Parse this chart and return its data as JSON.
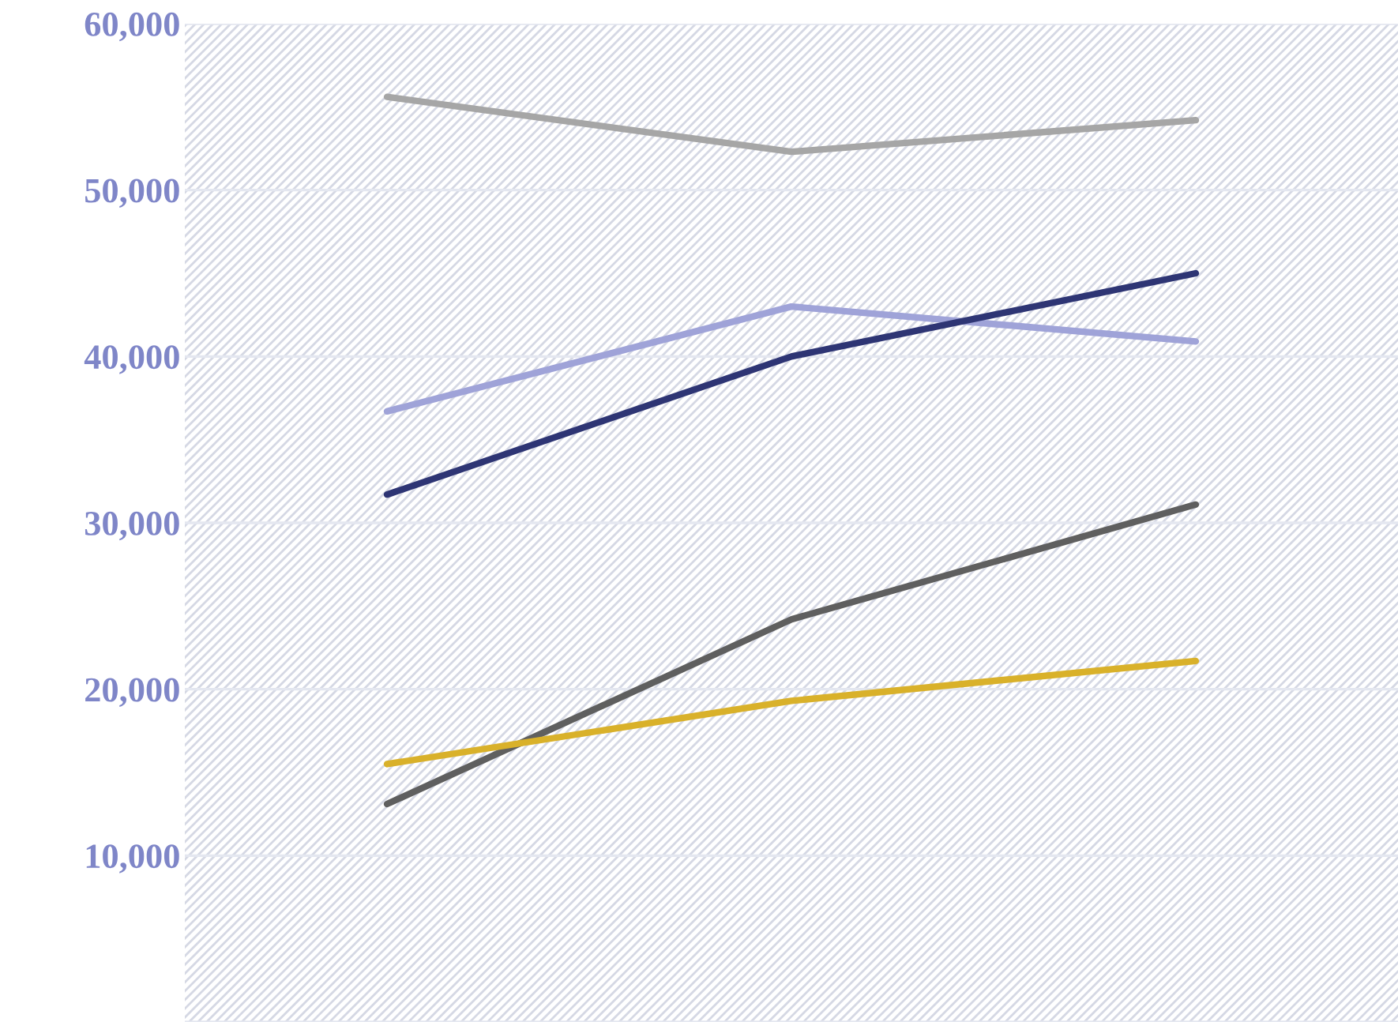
{
  "chart_data": {
    "type": "line",
    "categories": [
      null,
      null,
      null
    ],
    "series": [
      {
        "color": "#a6a6a6",
        "values": [
          55600,
          52300,
          54200
        ]
      },
      {
        "color": "#9fa3d8",
        "values": [
          36700,
          43000,
          40900
        ]
      },
      {
        "color": "#2e3574",
        "values": [
          31700,
          40000,
          45000
        ]
      },
      {
        "color": "#5f5f5f",
        "values": [
          13100,
          24200,
          31100
        ]
      },
      {
        "color": "#d9b12a",
        "values": [
          15500,
          19300,
          21700
        ]
      }
    ],
    "ylim": [
      0,
      60000
    ],
    "yticks": [
      {
        "value": 0,
        "label": null
      },
      {
        "value": 10000,
        "label": "10,000"
      },
      {
        "value": 20000,
        "label": "20,000"
      },
      {
        "value": 30000,
        "label": "30,000"
      },
      {
        "value": 40000,
        "label": "40,000"
      },
      {
        "value": 50000,
        "label": "50,000"
      },
      {
        "value": 60000,
        "label": "60,000"
      }
    ],
    "grid": "y",
    "marker": "none",
    "line_style": "solid",
    "tick_labels": "y"
  }
}
